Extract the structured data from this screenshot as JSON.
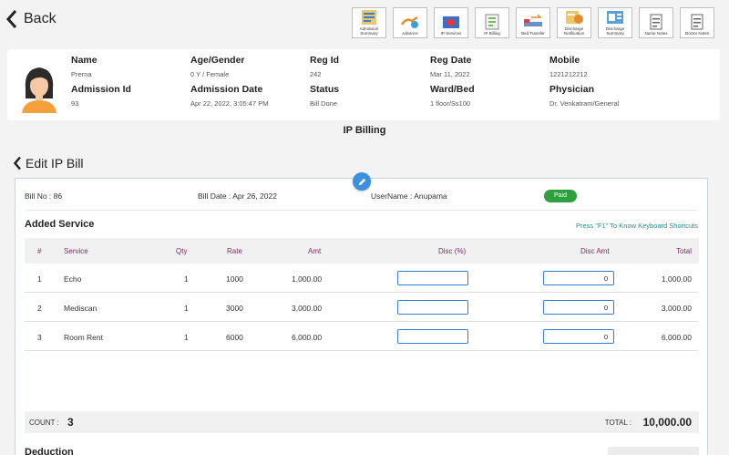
{
  "header": {
    "back_label": "Back"
  },
  "toolbar": [
    {
      "label": "Admission Summary",
      "icon": "admission-summary-icon"
    },
    {
      "label": "Advance",
      "icon": "advance-icon"
    },
    {
      "label": "IP Services",
      "icon": "ip-services-icon"
    },
    {
      "label": "IP Billing",
      "icon": "ip-billing-icon"
    },
    {
      "label": "Bed Transfer",
      "icon": "bed-transfer-icon"
    },
    {
      "label": "Discharge Notification",
      "icon": "discharge-notification-icon"
    },
    {
      "label": "Discharge Summary",
      "icon": "discharge-summary-icon"
    },
    {
      "label": "Nurse Notes",
      "icon": "nurse-notes-icon"
    },
    {
      "label": "Doctor Notes",
      "icon": "doctor-notes-icon"
    }
  ],
  "patient": {
    "name_label": "Name",
    "name": "Prerna",
    "age_label": "Age/Gender",
    "age": "0 Y / Female",
    "reg_id_label": "Reg Id",
    "reg_id": "242",
    "reg_date_label": "Reg Date",
    "reg_date": "Mar 11, 2022",
    "mobile_label": "Mobile",
    "mobile": "1221212212",
    "admission_id_label": "Admission Id",
    "admission_id": "93",
    "admission_date_label": "Admission Date",
    "admission_date": "Apr 22, 2022, 3:05:47 PM",
    "status_label": "Status",
    "status": "Bill Done",
    "ward_label": "Ward/Bed",
    "ward": "1 floor/Ss100",
    "physician_label": "Physician",
    "physician": "Dr. Venkatram/General"
  },
  "section_title": "IP Billing",
  "edit_title": "Edit IP Bill",
  "bill": {
    "bill_no": "Bill No : 86",
    "bill_date": "Bill Date : Apr 26, 2022",
    "username": "UserName : Anupama",
    "status": "Paid",
    "status_color": "#2e9e3e"
  },
  "services": {
    "title": "Added Service",
    "shortcut_hint": "Press \"F1\" To Know Keyboard Shortcuts",
    "columns": [
      "#",
      "Service",
      "Qty",
      "Rate",
      "Amt",
      "Disc (%)",
      "Disc Amt",
      "Total"
    ],
    "rows": [
      {
        "no": "1",
        "service": "Echo",
        "qty": "1",
        "rate": "1000",
        "amt": "1,000.00",
        "disc_pct": "",
        "disc_amt": "0",
        "total": "1,000.00"
      },
      {
        "no": "2",
        "service": "Mediscan",
        "qty": "1",
        "rate": "3000",
        "amt": "3,000.00",
        "disc_pct": "",
        "disc_amt": "0",
        "total": "3,000.00"
      },
      {
        "no": "3",
        "service": "Room Rent",
        "qty": "1",
        "rate": "6000",
        "amt": "6,000.00",
        "disc_pct": "",
        "disc_amt": "0",
        "total": "6,000.00"
      }
    ]
  },
  "summary": {
    "count_label": "COUNT :",
    "count": "3",
    "total_label": "TOTAL :",
    "total": "10,000.00"
  },
  "deduction_label": "Deduction"
}
